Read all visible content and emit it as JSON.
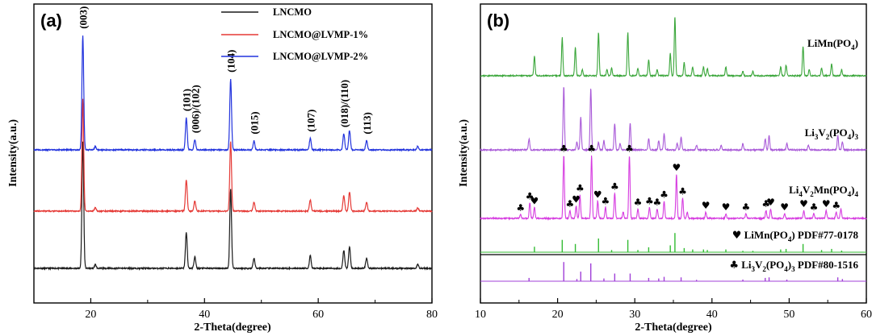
{
  "colors": {
    "black": "#1a1a1a",
    "red": "#e53935",
    "blue": "#2233dd",
    "green": "#3aa63a",
    "purple": "#a95ad8",
    "magenta": "#d63ce0",
    "ref_green": "#33bb33",
    "ref_purple": "#a040d8"
  },
  "chart_data": [
    {
      "panel_label": "(a)",
      "type": "line",
      "xlabel": "2-Theta(degree)",
      "ylabel": "Intensity(a.u.)",
      "xlim": [
        10,
        80
      ],
      "xticks": [
        "20",
        "40",
        "60",
        "80"
      ],
      "legend_position": "top-center",
      "legend": [
        {
          "name": "LNCMO",
          "color": "#1a1a1a"
        },
        {
          "name": "LNCMO@LVMP-1%",
          "color": "#e53935"
        },
        {
          "name": "LNCMO@LVMP-2%",
          "color": "#2233dd"
        }
      ],
      "peaks": [
        {
          "x": 18.6,
          "h": 100,
          "label": "(003)"
        },
        {
          "x": 20.8,
          "h": 3,
          "label": ""
        },
        {
          "x": 36.8,
          "h": 28,
          "label": "(101)"
        },
        {
          "x": 38.3,
          "h": 9,
          "label": "(006)/(102)"
        },
        {
          "x": 44.6,
          "h": 62,
          "label": "(104)"
        },
        {
          "x": 48.7,
          "h": 8,
          "label": "(015)"
        },
        {
          "x": 58.6,
          "h": 10,
          "label": "(107)"
        },
        {
          "x": 64.5,
          "h": 14,
          "label": "(018)/(110)"
        },
        {
          "x": 65.5,
          "h": 17,
          "label": ""
        },
        {
          "x": 68.5,
          "h": 8,
          "label": "(113)"
        },
        {
          "x": 77.5,
          "h": 3,
          "label": ""
        }
      ],
      "series": [
        {
          "name": "LNCMO",
          "scale": 1.0
        },
        {
          "name": "LNCMO@LVMP-1%",
          "scale": 0.88
        },
        {
          "name": "LNCMO@LVMP-2%",
          "scale": 0.9
        }
      ]
    },
    {
      "panel_label": "(b)",
      "type": "line",
      "xlabel": "2-Theta(degree)",
      "ylabel": "Intensity(a.u.)",
      "xlim": [
        10,
        60
      ],
      "xticks": [
        "10",
        "20",
        "30",
        "40",
        "50",
        "60"
      ],
      "series": [
        {
          "name": "LiMn(PO4)",
          "label_main": "LiMn(PO",
          "label_sub": "4",
          "label_end": ")",
          "peaks": [
            [
              17.0,
              26
            ],
            [
              20.6,
              52
            ],
            [
              22.3,
              38
            ],
            [
              23.2,
              8
            ],
            [
              25.3,
              58
            ],
            [
              26.4,
              8
            ],
            [
              27.0,
              10
            ],
            [
              29.1,
              58
            ],
            [
              30.4,
              10
            ],
            [
              31.8,
              22
            ],
            [
              32.9,
              8
            ],
            [
              34.6,
              30
            ],
            [
              35.2,
              80
            ],
            [
              36.4,
              18
            ],
            [
              37.5,
              12
            ],
            [
              38.9,
              12
            ],
            [
              39.4,
              10
            ],
            [
              41.8,
              12
            ],
            [
              44.0,
              6
            ],
            [
              45.3,
              6
            ],
            [
              48.9,
              12
            ],
            [
              49.6,
              14
            ],
            [
              51.8,
              40
            ],
            [
              52.6,
              8
            ],
            [
              54.2,
              10
            ],
            [
              55.5,
              16
            ],
            [
              56.8,
              8
            ]
          ]
        },
        {
          "name": "Li3V2(PO4)3",
          "label_main": "Li",
          "label_sub": "3",
          "label_mid": "V",
          "label_sub2": "2",
          "label_end": "(PO",
          "label_sub3": "4",
          "label_end2": ")3",
          "peaks": [
            [
              16.3,
              14
            ],
            [
              20.8,
              80
            ],
            [
              22.5,
              10
            ],
            [
              23.0,
              42
            ],
            [
              24.3,
              78
            ],
            [
              25.3,
              10
            ],
            [
              26.0,
              12
            ],
            [
              27.4,
              34
            ],
            [
              28.1,
              8
            ],
            [
              29.4,
              34
            ],
            [
              31.8,
              14
            ],
            [
              33.1,
              12
            ],
            [
              33.8,
              20
            ],
            [
              35.5,
              8
            ],
            [
              36.0,
              16
            ],
            [
              38.0,
              6
            ],
            [
              41.2,
              6
            ],
            [
              44.0,
              8
            ],
            [
              46.9,
              14
            ],
            [
              47.4,
              18
            ],
            [
              49.7,
              8
            ],
            [
              52.5,
              6
            ],
            [
              56.3,
              18
            ],
            [
              56.9,
              10
            ]
          ]
        },
        {
          "name": "Li4V2Mn(PO4)4",
          "peaks": [
            [
              15.2,
              5
            ],
            [
              16.4,
              20
            ],
            [
              17.0,
              14
            ],
            [
              20.8,
              80
            ],
            [
              21.6,
              10
            ],
            [
              22.4,
              16
            ],
            [
              22.9,
              30
            ],
            [
              24.4,
              80
            ],
            [
              25.2,
              22
            ],
            [
              26.2,
              14
            ],
            [
              27.4,
              32
            ],
            [
              28.5,
              8
            ],
            [
              29.3,
              80
            ],
            [
              30.4,
              12
            ],
            [
              31.9,
              14
            ],
            [
              32.9,
              12
            ],
            [
              33.8,
              22
            ],
            [
              35.4,
              56
            ],
            [
              36.2,
              26
            ],
            [
              36.8,
              8
            ],
            [
              39.2,
              8
            ],
            [
              41.8,
              6
            ],
            [
              44.4,
              6
            ],
            [
              47.0,
              10
            ],
            [
              47.6,
              12
            ],
            [
              49.4,
              6
            ],
            [
              51.9,
              10
            ],
            [
              53.2,
              6
            ],
            [
              54.8,
              10
            ],
            [
              56.1,
              8
            ],
            [
              56.7,
              12
            ]
          ],
          "markers": [
            [
              15.2,
              "club"
            ],
            [
              16.4,
              "club"
            ],
            [
              17.0,
              "heart"
            ],
            [
              20.8,
              "club"
            ],
            [
              21.6,
              "club"
            ],
            [
              22.4,
              "heart"
            ],
            [
              22.9,
              "club"
            ],
            [
              24.4,
              "club"
            ],
            [
              25.2,
              "heart"
            ],
            [
              26.2,
              "club"
            ],
            [
              27.4,
              "club"
            ],
            [
              29.3,
              "club"
            ],
            [
              30.4,
              "club"
            ],
            [
              31.9,
              "club"
            ],
            [
              32.9,
              "club"
            ],
            [
              33.8,
              "club"
            ],
            [
              35.4,
              "heart"
            ],
            [
              36.2,
              "club"
            ],
            [
              39.2,
              "heart"
            ],
            [
              41.8,
              "heart"
            ],
            [
              44.4,
              "club"
            ],
            [
              47.0,
              "club"
            ],
            [
              47.6,
              "heart"
            ],
            [
              49.4,
              "heart"
            ],
            [
              51.9,
              "heart"
            ],
            [
              53.2,
              "club"
            ],
            [
              54.8,
              "heart"
            ],
            [
              56.1,
              "club"
            ]
          ]
        },
        {
          "name": "LiMn(PO4) PDF#77-0178",
          "pdf": "PDF#77-0178",
          "sticks": [
            [
              17.0,
              20
            ],
            [
              20.6,
              45
            ],
            [
              22.3,
              30
            ],
            [
              25.3,
              50
            ],
            [
              27.0,
              8
            ],
            [
              29.1,
              45
            ],
            [
              30.4,
              8
            ],
            [
              31.8,
              18
            ],
            [
              34.6,
              25
            ],
            [
              35.2,
              70
            ],
            [
              36.4,
              15
            ],
            [
              37.5,
              10
            ],
            [
              38.9,
              10
            ],
            [
              39.4,
              8
            ],
            [
              41.8,
              10
            ],
            [
              44.0,
              5
            ],
            [
              45.3,
              5
            ],
            [
              48.9,
              10
            ],
            [
              49.6,
              12
            ],
            [
              51.8,
              30
            ],
            [
              54.2,
              8
            ],
            [
              55.5,
              12
            ],
            [
              56.8,
              6
            ]
          ]
        },
        {
          "name": "Li3V2(PO4)3 PDF#80-1516",
          "pdf": "PDF#80-1516",
          "sticks": [
            [
              16.3,
              12
            ],
            [
              20.8,
              70
            ],
            [
              22.5,
              8
            ],
            [
              23.0,
              35
            ],
            [
              24.3,
              65
            ],
            [
              26.0,
              10
            ],
            [
              27.4,
              28
            ],
            [
              29.4,
              28
            ],
            [
              31.8,
              12
            ],
            [
              33.1,
              10
            ],
            [
              33.8,
              16
            ],
            [
              36.0,
              14
            ],
            [
              38.0,
              5
            ],
            [
              44.0,
              6
            ],
            [
              46.9,
              12
            ],
            [
              47.4,
              14
            ],
            [
              49.7,
              6
            ],
            [
              56.3,
              14
            ],
            [
              56.9,
              8
            ]
          ]
        }
      ]
    }
  ]
}
